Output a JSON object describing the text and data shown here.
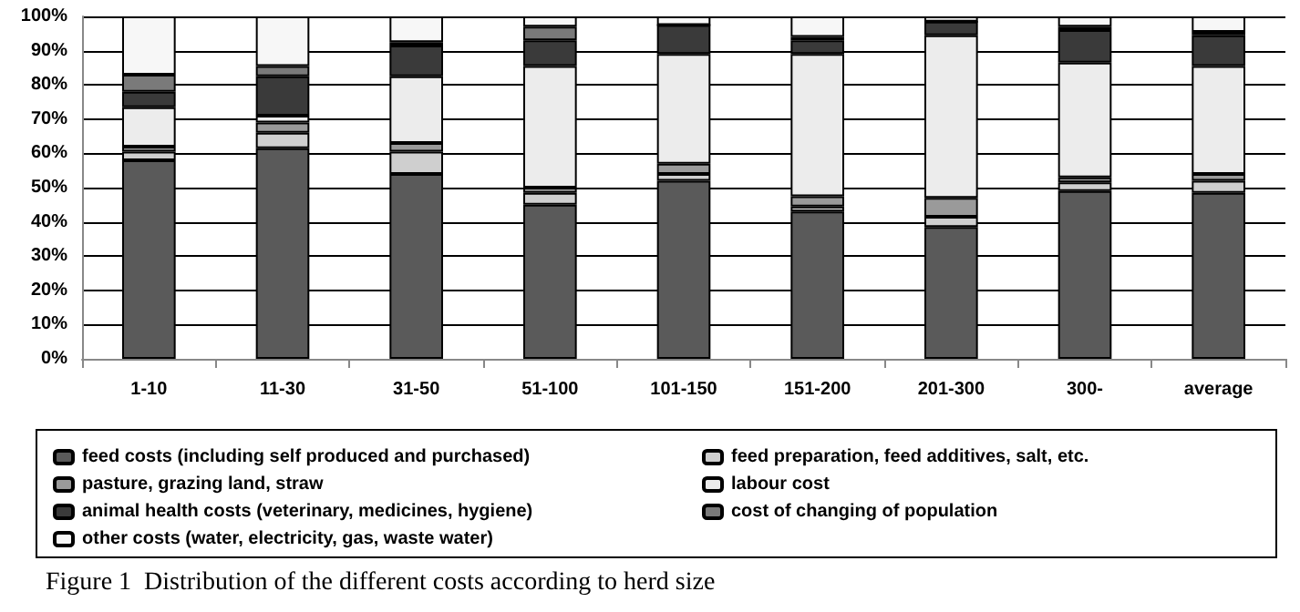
{
  "chart_data": {
    "type": "bar",
    "stacked": true,
    "title": "Figure 1  Distribution of the different costs according to herd size",
    "categories": [
      "1-10",
      "11-30",
      "31-50",
      "51-100",
      "101-150",
      "151-200",
      "201-300",
      "300-",
      "average"
    ],
    "series": [
      {
        "name": "feed costs (including self produced and purchased)",
        "color": "#5a5a5a",
        "values": [
          58,
          61.5,
          54,
          45,
          52,
          43,
          38.5,
          49,
          48.5
        ]
      },
      {
        "name": "feed preparation, feed additives, salt, etc.",
        "color": "#cfcfcf",
        "values": [
          2.5,
          4.5,
          6.5,
          3.5,
          2,
          1.5,
          3,
          2.5,
          3.5
        ]
      },
      {
        "name": "pasture, grazing land, straw",
        "color": "#9a9a9a",
        "values": [
          1.5,
          3,
          2.5,
          1.5,
          3,
          3,
          5.5,
          1.5,
          2
        ]
      },
      {
        "name": "labour cost",
        "color": "#ececec",
        "values": [
          11.5,
          2,
          19.5,
          35.5,
          32,
          41.5,
          47.5,
          33.5,
          31.5
        ]
      },
      {
        "name": "animal health costs (veterinary, medicines, hygiene)",
        "color": "#3a3a3a",
        "values": [
          4.5,
          11.5,
          9,
          7.5,
          8.5,
          4,
          4,
          9.5,
          9
        ]
      },
      {
        "name": "cost of changing of population",
        "color": "#7a7a7a",
        "values": [
          5,
          3,
          1,
          4,
          0,
          1,
          0,
          1,
          1
        ]
      },
      {
        "name": "other costs (water, electricity, gas, waste water)",
        "color": "#f7f7f7",
        "values": [
          17,
          14.5,
          7.5,
          3,
          2.5,
          6,
          1.5,
          3,
          4.5
        ]
      }
    ],
    "ylim": [
      0,
      100
    ],
    "yticks": [
      {
        "value": 0,
        "label": "0%"
      },
      {
        "value": 10,
        "label": "10%"
      },
      {
        "value": 20,
        "label": "20%"
      },
      {
        "value": 30,
        "label": "30%"
      },
      {
        "value": 40,
        "label": "40%"
      },
      {
        "value": 50,
        "label": "50%"
      },
      {
        "value": 60,
        "label": "60%"
      },
      {
        "value": 70,
        "label": "70%"
      },
      {
        "value": 80,
        "label": "80%"
      },
      {
        "value": 90,
        "label": "90%"
      },
      {
        "value": 100,
        "label": "100%"
      }
    ],
    "grid": "y",
    "legend": "bottom"
  }
}
